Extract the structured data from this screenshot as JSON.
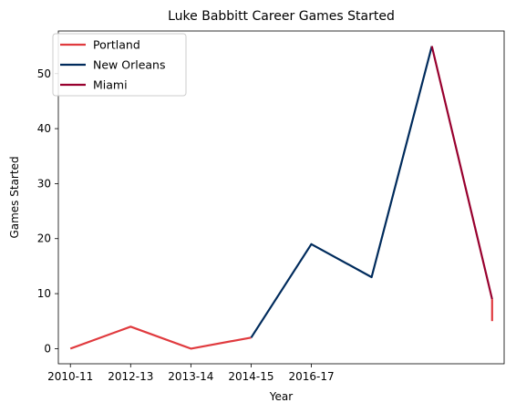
{
  "chart_data": {
    "type": "line",
    "title": "Luke Babbitt Career Games Started",
    "xlabel": "Year",
    "ylabel": "Games Started",
    "x_tick_labels": [
      "2010-11",
      "2012-13",
      "2013-14",
      "2014-15",
      "2016-17"
    ],
    "y_ticks": [
      0,
      10,
      20,
      30,
      40,
      50
    ],
    "xlim": [
      -0.2,
      7.2
    ],
    "ylim": [
      -2.75,
      57.75
    ],
    "grid": false,
    "legend_position": "upper-left",
    "series": [
      {
        "name": "Portland",
        "color": "#e03a3e",
        "points": [
          [
            0,
            0
          ],
          [
            1,
            4
          ],
          [
            2,
            0
          ],
          [
            3,
            2
          ]
        ]
      },
      {
        "name": "New Orleans",
        "color": "#002b5c",
        "points": [
          [
            3,
            2
          ],
          [
            4,
            19
          ],
          [
            5,
            13
          ],
          [
            6,
            55
          ]
        ]
      },
      {
        "name": "Miami",
        "color": "#98002e",
        "points": [
          [
            6,
            55
          ],
          [
            7,
            9
          ]
        ]
      }
    ],
    "extra_segments": [
      {
        "color": "#e03a3e",
        "points": [
          [
            7,
            9
          ],
          [
            7,
            5
          ]
        ]
      }
    ]
  }
}
